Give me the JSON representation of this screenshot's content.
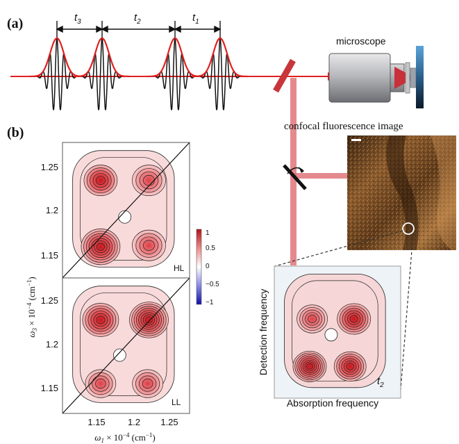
{
  "panel_a": {
    "label": "(a)",
    "delays": [
      "t",
      "t",
      "t"
    ],
    "delay_subscripts": [
      "3",
      "2",
      "1"
    ],
    "microscope_label": "microscope",
    "image_label": "confocal fluorescence image",
    "pulse_envelope_color": "#e02020",
    "carrier_color": "#111111",
    "beam_color": "#d9373c",
    "mirror_color": "#c8363b"
  },
  "panel_b": {
    "label": "(b)",
    "y_label_main": "ω",
    "y_label_sub": "3",
    "y_label_rest": " × 10",
    "y_label_exp": "−4",
    "y_label_unit": " (cm",
    "y_label_unit_exp": "−1",
    "y_label_close": ")",
    "x_label_main": "ω",
    "x_label_sub": "1",
    "x_label_rest": " × 10",
    "x_label_exp": "−4",
    "x_label_unit": " (cm",
    "x_label_unit_exp": "−1",
    "x_label_close": ")",
    "x_ticks": [
      "1.15",
      "1.2",
      "1.25"
    ],
    "y_ticks_top": [
      "1.25",
      "1.2",
      "1.15"
    ],
    "y_ticks_bottom": [
      "1.25",
      "1.2",
      "1.15"
    ],
    "top_map_tag": "HL",
    "bottom_map_tag": "LL",
    "colorbar_ticks": [
      "1",
      "0.5",
      "0",
      "−0.5",
      "−1"
    ]
  },
  "inset_map": {
    "y_label": "Detection frequency",
    "x_label": "Absorption frequency",
    "tag_main": "t",
    "tag_sub": "2"
  }
}
